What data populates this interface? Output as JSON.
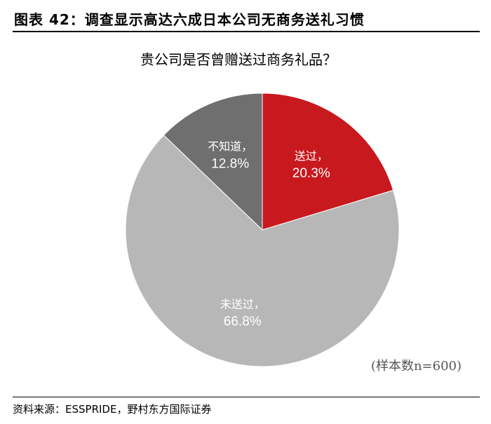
{
  "figure": {
    "title": "图表 42：调查显示高达六成日本公司无商务送礼习惯",
    "source": "资料来源：ESSPRIDE，野村东方国际证券"
  },
  "chart_data": {
    "type": "pie",
    "title": "贵公司是否曾赠送过商务礼品？",
    "annotation": "(样本数n=600)",
    "unit": "%",
    "slices": [
      {
        "label": "送过，",
        "value": 20.3,
        "value_text": "20.3%",
        "color": "#c8191e"
      },
      {
        "label": "未送过，",
        "value": 66.8,
        "value_text": "66.8%",
        "color": "#b7b7b7"
      },
      {
        "label": "不知道，",
        "value": 12.8,
        "value_text": "12.8%",
        "color": "#6f6f6f"
      }
    ],
    "start_angle_deg": 0,
    "direction": "clockwise",
    "legend": "none"
  }
}
